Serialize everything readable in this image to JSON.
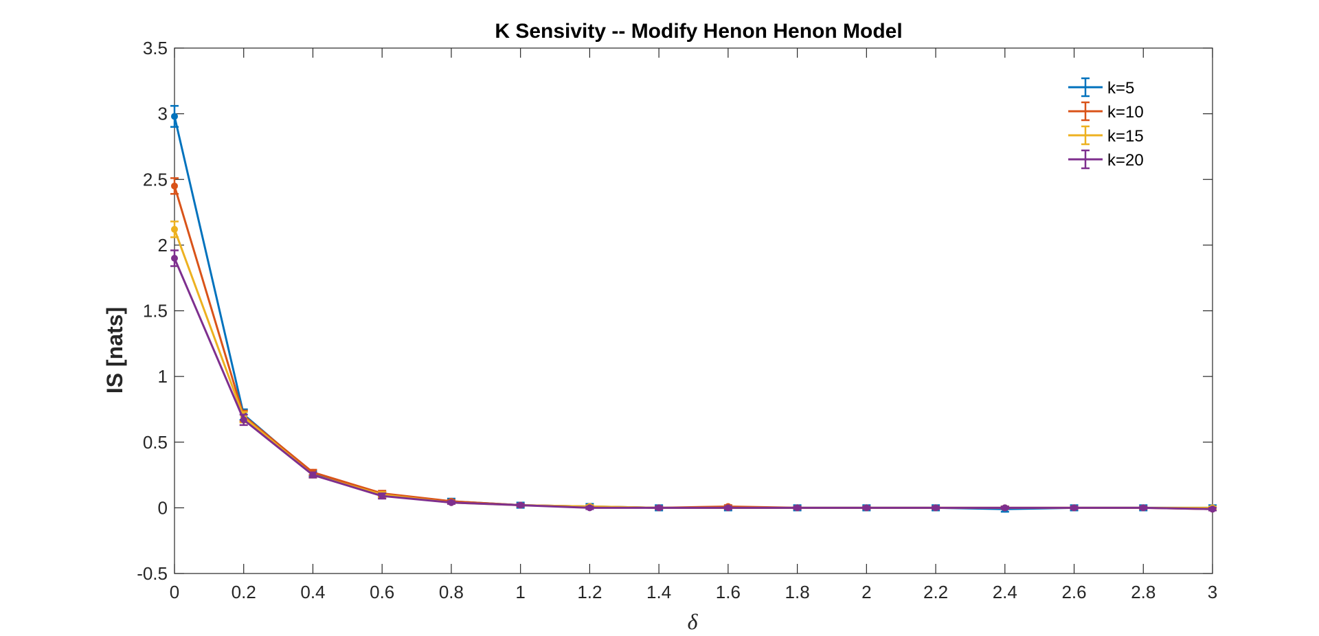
{
  "chart_data": {
    "type": "line",
    "title": "K Sensivity -- Modify Henon Henon Model",
    "xlabel": "δ",
    "ylabel": "IS [nats]",
    "xlim": [
      0,
      3
    ],
    "ylim": [
      -0.5,
      3.5
    ],
    "xticks": [
      "0",
      "0.2",
      "0.4",
      "0.6",
      "0.8",
      "1",
      "1.2",
      "1.4",
      "1.6",
      "1.8",
      "2",
      "2.2",
      "2.4",
      "2.6",
      "2.8",
      "3"
    ],
    "yticks": [
      "-0.5",
      "0",
      "0.5",
      "1",
      "1.5",
      "2",
      "2.5",
      "3",
      "3.5"
    ],
    "grid": false,
    "legend_position": "top-right",
    "x": [
      0,
      0.2,
      0.4,
      0.6,
      0.8,
      1,
      1.2,
      1.4,
      1.6,
      1.8,
      2,
      2.2,
      2.4,
      2.6,
      2.8,
      3
    ],
    "series": [
      {
        "name": "k=5",
        "color": "#0072BD",
        "values": [
          2.98,
          0.71,
          0.26,
          0.1,
          0.05,
          0.02,
          0.01,
          0.0,
          0.0,
          0.0,
          0.0,
          0.0,
          -0.01,
          0.0,
          0.0,
          0.0
        ],
        "errors": [
          0.08,
          0.04,
          0.02,
          0.02,
          0.02,
          0.02,
          0.02,
          0.02,
          0.02,
          0.02,
          0.02,
          0.02,
          0.02,
          0.02,
          0.02,
          0.02
        ]
      },
      {
        "name": "k=10",
        "color": "#D95319",
        "values": [
          2.45,
          0.7,
          0.27,
          0.11,
          0.05,
          0.02,
          0.01,
          0.0,
          0.01,
          0.0,
          0.0,
          0.0,
          0.0,
          0.0,
          0.0,
          -0.01
        ],
        "errors": [
          0.06,
          0.04,
          0.02,
          0.02,
          0.01,
          0.01,
          0.01,
          0.01,
          0.01,
          0.01,
          0.01,
          0.01,
          0.01,
          0.01,
          0.01,
          0.01
        ]
      },
      {
        "name": "k=15",
        "color": "#EDB120",
        "values": [
          2.12,
          0.69,
          0.25,
          0.1,
          0.04,
          0.02,
          0.01,
          0.0,
          0.0,
          0.0,
          0.0,
          0.0,
          0.0,
          0.0,
          0.0,
          0.0
        ],
        "errors": [
          0.06,
          0.04,
          0.02,
          0.02,
          0.01,
          0.01,
          0.01,
          0.01,
          0.01,
          0.01,
          0.01,
          0.01,
          0.01,
          0.01,
          0.01,
          0.01
        ]
      },
      {
        "name": "k=20",
        "color": "#7E2F8E",
        "values": [
          1.9,
          0.67,
          0.25,
          0.09,
          0.04,
          0.02,
          0.0,
          0.0,
          0.0,
          0.0,
          0.0,
          0.0,
          0.0,
          0.0,
          0.0,
          -0.01
        ],
        "errors": [
          0.06,
          0.04,
          0.02,
          0.02,
          0.01,
          0.01,
          0.01,
          0.01,
          0.01,
          0.01,
          0.01,
          0.01,
          0.01,
          0.01,
          0.01,
          0.01
        ]
      }
    ]
  }
}
